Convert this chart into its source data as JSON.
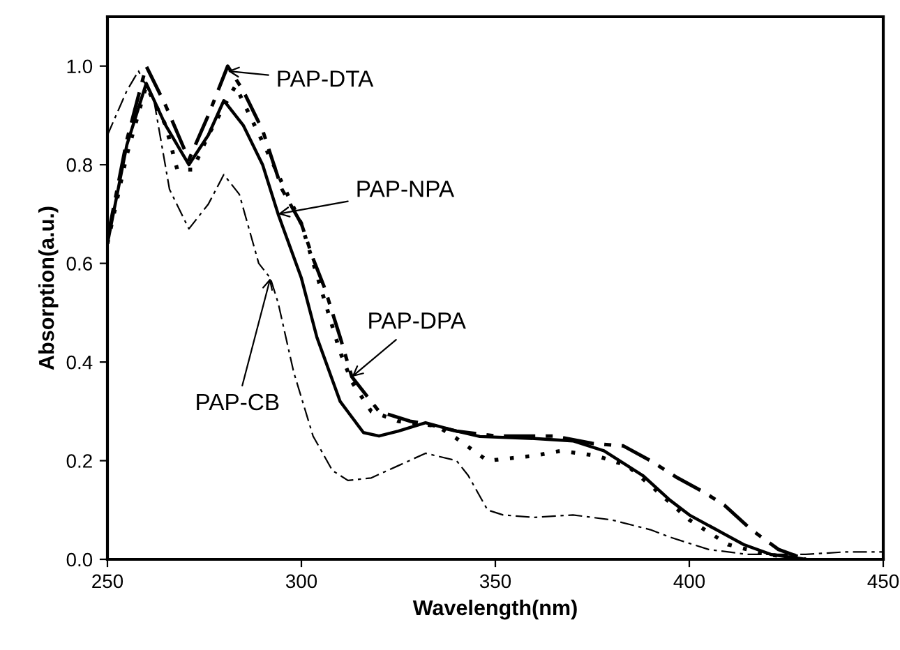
{
  "chart_data": {
    "type": "line",
    "xlabel": "Wavelength(nm)",
    "ylabel": "Absorption(a.u.)",
    "xlim": [
      250,
      450
    ],
    "xticks": [
      250,
      300,
      350,
      400,
      450
    ],
    "ylim": [
      0,
      1.1
    ],
    "yticks": [
      {
        "value": 0,
        "label": "0.0"
      },
      {
        "value": 0.2,
        "label": "0.2"
      },
      {
        "value": 0.4,
        "label": "0.4"
      },
      {
        "value": 0.6,
        "label": "0.6"
      },
      {
        "value": 0.8,
        "label": "0.8"
      },
      {
        "value": 1.0,
        "label": "1.0"
      }
    ],
    "grid": false,
    "legend": false,
    "marker": "none",
    "series": [
      {
        "color": "#000000",
        "line_style": "dashed",
        "x": [
          250,
          255,
          260,
          265,
          271,
          276,
          281,
          285,
          290,
          295,
          300,
          303,
          306,
          310,
          313,
          316,
          320,
          328,
          332,
          340,
          350,
          365,
          375,
          383,
          390,
          397,
          404,
          409,
          416,
          423,
          430
        ],
        "values": [
          0.65,
          0.85,
          1.0,
          0.92,
          0.81,
          0.9,
          1.0,
          0.95,
          0.87,
          0.75,
          0.68,
          0.61,
          0.55,
          0.45,
          0.37,
          0.34,
          0.3,
          0.28,
          0.275,
          0.26,
          0.25,
          0.25,
          0.235,
          0.23,
          0.2,
          0.165,
          0.135,
          0.11,
          0.06,
          0.02,
          0.0
        ]
      },
      {
        "color": "#000000",
        "line_style": "solid",
        "x": [
          250,
          255,
          260,
          265,
          271,
          276,
          280,
          285,
          290,
          294,
          300,
          304,
          310,
          316,
          320,
          325,
          332,
          340,
          346,
          360,
          370,
          378,
          384,
          388,
          395,
          400,
          407,
          414,
          421,
          430
        ],
        "values": [
          0.64,
          0.84,
          0.965,
          0.88,
          0.8,
          0.86,
          0.93,
          0.88,
          0.8,
          0.7,
          0.57,
          0.45,
          0.32,
          0.257,
          0.25,
          0.26,
          0.277,
          0.26,
          0.249,
          0.245,
          0.24,
          0.22,
          0.19,
          0.17,
          0.12,
          0.09,
          0.06,
          0.03,
          0.01,
          0.0
        ]
      },
      {
        "color": "#000000",
        "line_style": "dotted",
        "x": [
          250,
          255,
          260,
          265,
          268,
          272,
          276,
          283,
          291,
          300,
          305,
          310,
          313,
          318,
          325,
          335,
          340,
          348,
          360,
          367,
          376,
          384,
          390,
          400,
          410,
          420,
          430
        ],
        "values": [
          0.64,
          0.82,
          0.96,
          0.88,
          0.79,
          0.79,
          0.86,
          0.96,
          0.83,
          0.68,
          0.55,
          0.42,
          0.36,
          0.3,
          0.28,
          0.27,
          0.245,
          0.2,
          0.21,
          0.22,
          0.21,
          0.19,
          0.15,
          0.08,
          0.03,
          0.01,
          0.0
        ]
      },
      {
        "color": "#000000",
        "line_style": "dashed",
        "x": [
          250,
          255,
          258,
          262,
          266,
          271,
          276,
          280,
          284,
          289,
          292,
          294,
          298,
          303,
          308,
          312,
          318,
          325,
          332,
          340,
          343,
          348,
          352,
          360,
          370,
          380,
          390,
          395,
          405,
          415,
          430,
          440,
          450
        ],
        "values": [
          0.86,
          0.95,
          0.99,
          0.93,
          0.75,
          0.67,
          0.72,
          0.78,
          0.74,
          0.6,
          0.57,
          0.52,
          0.38,
          0.25,
          0.18,
          0.16,
          0.165,
          0.19,
          0.215,
          0.2,
          0.17,
          0.1,
          0.09,
          0.085,
          0.09,
          0.08,
          0.06,
          0.045,
          0.02,
          0.01,
          0.01,
          0.015,
          0.015
        ]
      }
    ],
    "annotations": [
      {
        "text": "PAP-DTA",
        "x": 281,
        "y": 0.99
      },
      {
        "text": "PAP-NPA",
        "x": 294,
        "y": 0.7
      },
      {
        "text": "PAP-DPA",
        "x": 313,
        "y": 0.37
      },
      {
        "text": "PAP-CB",
        "x": 292,
        "y": 0.57
      }
    ]
  }
}
